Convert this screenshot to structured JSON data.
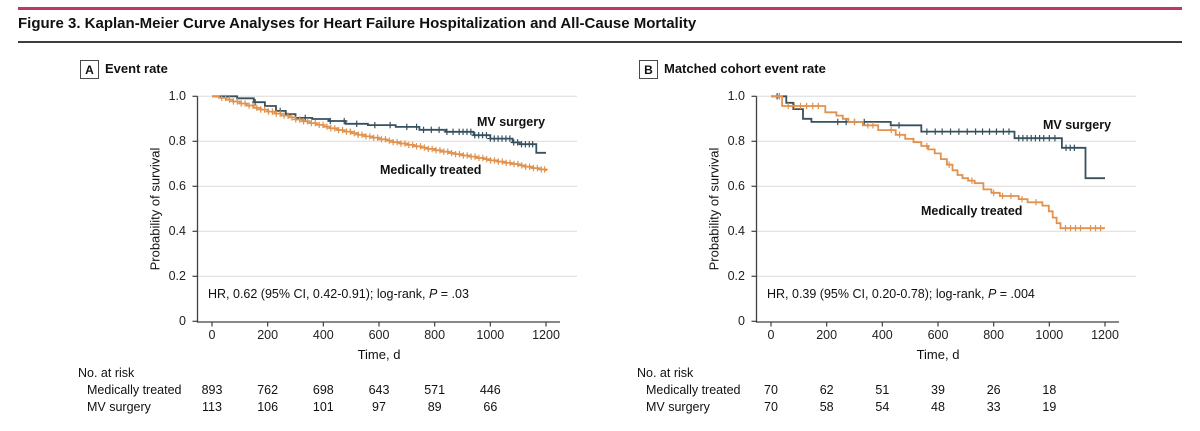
{
  "figure": {
    "title": "Figure 3. Kaplan-Meier Curve Analyses for Heart Failure Hospitalization and All-Cause Mortality",
    "accent_color": "#C13569"
  },
  "colors": {
    "mv_surgery": "#37515F",
    "medically_treated": "#E0924E",
    "grid": "#DBDBDB",
    "axis": "#404040"
  },
  "chart_data": [
    {
      "type": "line",
      "subtype": "kaplan-meier",
      "panel": "A",
      "title": "Event rate",
      "xlabel": "Time, d",
      "ylabel": "Probability of survival",
      "xlim": [
        0,
        1200
      ],
      "ylim": [
        0,
        1.0
      ],
      "xticks": [
        0,
        200,
        400,
        600,
        800,
        1000,
        1200
      ],
      "ytick_labels": [
        "1.0",
        "0.8",
        "0.6",
        "0.4",
        "0.2",
        "0"
      ],
      "ytick_values": [
        1.0,
        0.8,
        0.6,
        0.4,
        0.2,
        0
      ],
      "grid": "horizontal",
      "legend_position": "inline-labels",
      "annotation": {
        "pre": "HR, 0.62 (95% CI, 0.42-0.91); log-rank, ",
        "p": "P",
        "post": " = .03"
      },
      "series": [
        {
          "name": "MV surgery",
          "color": "#37515F",
          "x": [
            0,
            90,
            150,
            190,
            230,
            265,
            300,
            360,
            420,
            480,
            560,
            660,
            745,
            840,
            940,
            1000,
            1080,
            1105,
            1165,
            1200
          ],
          "y": [
            1.0,
            0.991,
            0.974,
            0.957,
            0.935,
            0.921,
            0.904,
            0.899,
            0.89,
            0.878,
            0.872,
            0.864,
            0.851,
            0.842,
            0.827,
            0.812,
            0.795,
            0.787,
            0.749,
            0.749
          ],
          "censor_x": [
            155,
            245,
            335,
            425,
            475,
            520,
            585,
            640,
            700,
            735,
            760,
            788,
            816,
            844,
            866,
            888,
            902,
            916,
            930,
            944,
            958,
            972,
            986,
            1000,
            1014,
            1028,
            1042,
            1056,
            1070,
            1084,
            1098,
            1112,
            1126,
            1140,
            1152
          ]
        },
        {
          "name": "Medically treated",
          "color": "#E0924E",
          "x": [
            0,
            25,
            50,
            75,
            100,
            125,
            150,
            175,
            200,
            225,
            250,
            275,
            300,
            325,
            350,
            375,
            400,
            425,
            450,
            475,
            500,
            525,
            550,
            575,
            600,
            625,
            650,
            675,
            700,
            725,
            750,
            775,
            800,
            825,
            850,
            875,
            900,
            925,
            950,
            975,
            1000,
            1025,
            1050,
            1075,
            1100,
            1125,
            1150,
            1175,
            1200
          ],
          "y": [
            1.0,
            0.993,
            0.985,
            0.977,
            0.968,
            0.959,
            0.949,
            0.941,
            0.932,
            0.923,
            0.914,
            0.906,
            0.897,
            0.889,
            0.881,
            0.873,
            0.865,
            0.858,
            0.85,
            0.843,
            0.836,
            0.829,
            0.822,
            0.816,
            0.809,
            0.803,
            0.796,
            0.79,
            0.784,
            0.778,
            0.772,
            0.766,
            0.76,
            0.754,
            0.748,
            0.743,
            0.737,
            0.732,
            0.726,
            0.721,
            0.715,
            0.71,
            0.704,
            0.699,
            0.693,
            0.687,
            0.681,
            0.675,
            0.668
          ],
          "censor_x": [
            35,
            49,
            63,
            77,
            91,
            105,
            119,
            133,
            147,
            161,
            175,
            189,
            203,
            217,
            231,
            245,
            259,
            273,
            287,
            301,
            315,
            329,
            343,
            357,
            371,
            385,
            399,
            413,
            427,
            441,
            455,
            469,
            483,
            497,
            511,
            525,
            539,
            553,
            567,
            581,
            595,
            609,
            623,
            637,
            651,
            665,
            679,
            693,
            707,
            721,
            735,
            749,
            763,
            777,
            791,
            805,
            819,
            833,
            847,
            861,
            875,
            889,
            903,
            917,
            931,
            945,
            959,
            973,
            987,
            1001,
            1015,
            1029,
            1043,
            1057,
            1071,
            1085,
            1099,
            1113,
            1127,
            1141,
            1155,
            1169,
            1183,
            1195
          ]
        }
      ],
      "risk_table": {
        "header": "No. at risk",
        "time_points": [
          0,
          200,
          400,
          600,
          800,
          1000
        ],
        "rows": [
          {
            "label": "Medically treated",
            "values": [
              893,
              762,
              698,
              643,
              571,
              446
            ]
          },
          {
            "label": "MV surgery",
            "values": [
              113,
              106,
              101,
              97,
              89,
              66
            ]
          }
        ]
      }
    },
    {
      "type": "line",
      "subtype": "kaplan-meier",
      "panel": "B",
      "title": "Matched cohort event rate",
      "xlabel": "Time, d",
      "ylabel": "Probability of survival",
      "xlim": [
        0,
        1200
      ],
      "ylim": [
        0,
        1.0
      ],
      "xticks": [
        0,
        200,
        400,
        600,
        800,
        1000,
        1200
      ],
      "ytick_labels": [
        "1.0",
        "0.8",
        "0.6",
        "0.4",
        "0.2",
        "0"
      ],
      "ytick_values": [
        1.0,
        0.8,
        0.6,
        0.4,
        0.2,
        0
      ],
      "grid": "horizontal",
      "legend_position": "inline-labels",
      "annotation": {
        "pre": "HR, 0.39 (95% CI, 0.20-0.78); log-rank, ",
        "p": "P",
        "post": " = .004"
      },
      "series": [
        {
          "name": "MV surgery",
          "color": "#37515F",
          "x": [
            0,
            55,
            80,
            115,
            145,
            430,
            540,
            875,
            1045,
            1130,
            1200
          ],
          "y": [
            1.0,
            0.971,
            0.943,
            0.9,
            0.886,
            0.871,
            0.843,
            0.814,
            0.771,
            0.636,
            0.636
          ],
          "censor_x": [
            22,
            30,
            240,
            270,
            300,
            335,
            460,
            560,
            590,
            615,
            645,
            675,
            705,
            735,
            760,
            785,
            810,
            835,
            855,
            890,
            905,
            920,
            935,
            950,
            965,
            980,
            1000,
            1020,
            1060,
            1075,
            1090
          ]
        },
        {
          "name": "Medically treated",
          "color": "#E0924E",
          "x": [
            0,
            40,
            195,
            235,
            258,
            278,
            330,
            385,
            448,
            482,
            512,
            540,
            565,
            588,
            610,
            632,
            652,
            670,
            688,
            708,
            732,
            763,
            792,
            822,
            890,
            922,
            975,
            998,
            1012,
            1026,
            1040,
            1200
          ],
          "y": [
            1.0,
            0.957,
            0.929,
            0.914,
            0.9,
            0.886,
            0.871,
            0.85,
            0.829,
            0.811,
            0.796,
            0.779,
            0.764,
            0.746,
            0.721,
            0.696,
            0.671,
            0.65,
            0.636,
            0.625,
            0.614,
            0.586,
            0.571,
            0.557,
            0.543,
            0.529,
            0.514,
            0.489,
            0.461,
            0.436,
            0.414,
            0.414
          ],
          "censor_x": [
            30,
            62,
            84,
            106,
            128,
            150,
            170,
            300,
            348,
            366,
            432,
            462,
            560,
            640,
            722,
            800,
            832,
            862,
            902,
            952,
            1058,
            1076,
            1094,
            1112,
            1148,
            1166,
            1184
          ]
        }
      ],
      "risk_table": {
        "header": "No. at risk",
        "time_points": [
          0,
          200,
          400,
          600,
          800,
          1000
        ],
        "rows": [
          {
            "label": "Medically treated",
            "values": [
              70,
              62,
              51,
              39,
              26,
              18
            ]
          },
          {
            "label": "MV surgery",
            "values": [
              70,
              58,
              54,
              48,
              33,
              19
            ]
          }
        ]
      }
    }
  ]
}
